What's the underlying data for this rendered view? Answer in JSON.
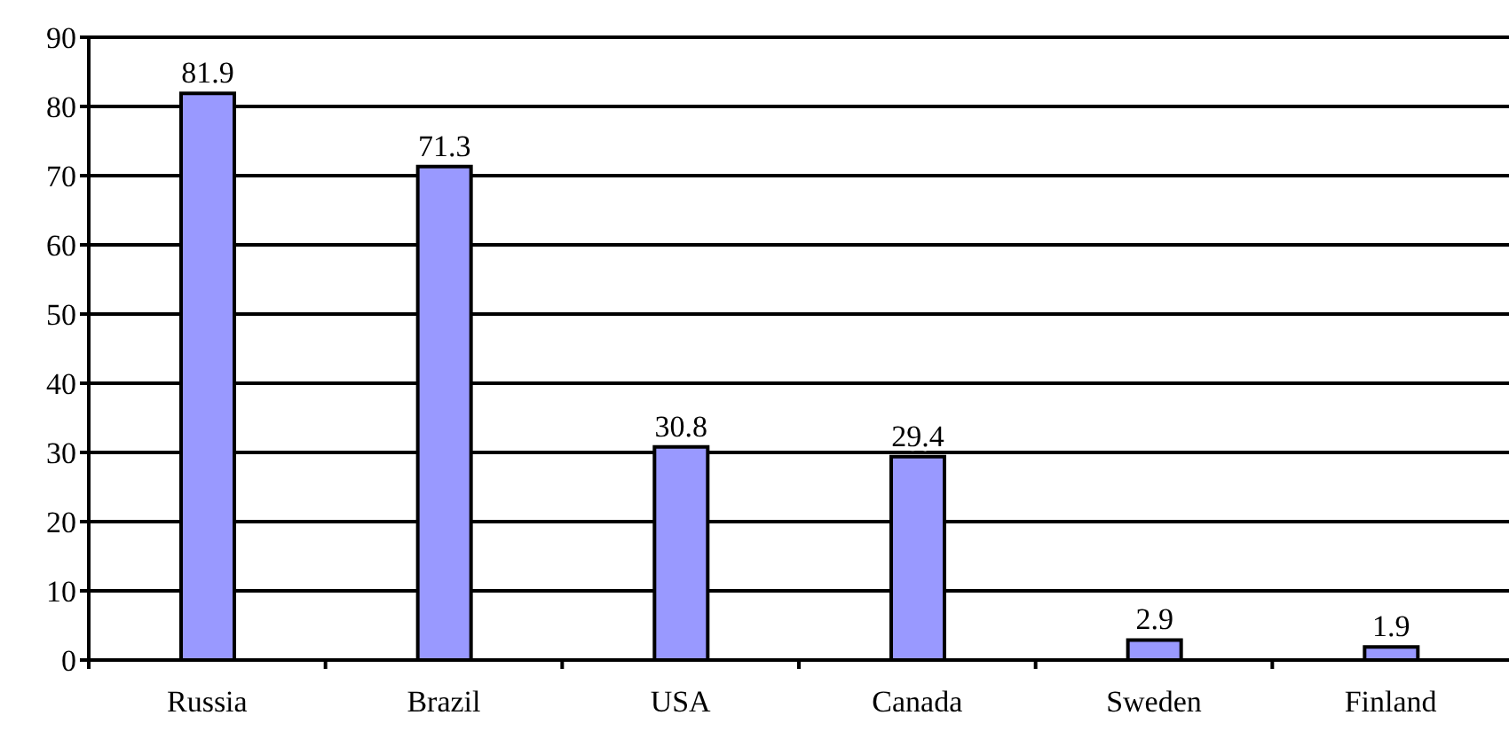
{
  "chart_data": {
    "type": "bar",
    "categories": [
      "Russia",
      "Brazil",
      "USA",
      "Canada",
      "Sweden",
      "Finland"
    ],
    "values": [
      81.9,
      71.3,
      30.8,
      29.4,
      2.9,
      1.9
    ],
    "color": "#9999ff",
    "ylim": [
      0,
      90
    ],
    "yticks": [
      0,
      10,
      20,
      30,
      40,
      50,
      60,
      70,
      80,
      90
    ],
    "grid": "y",
    "data_labels": true
  }
}
